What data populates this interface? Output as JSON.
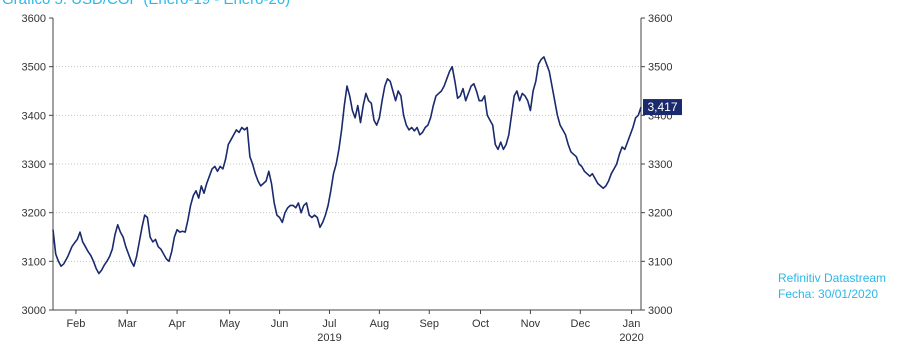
{
  "title": "Gráfico 5. USD/COP (Enero-19 - Enero-20)",
  "source": {
    "line1": "Refinitiv Datastream",
    "line2": "Fecha: 30/01/2020"
  },
  "chart_data": {
    "type": "line",
    "series": [
      {
        "color": "#1a2a6c",
        "last_value_label": "3,417",
        "last_value": 3417,
        "points": [
          [
            0,
            3165
          ],
          [
            2,
            3115
          ],
          [
            4,
            3100
          ],
          [
            6,
            3090
          ],
          [
            8,
            3095
          ],
          [
            11,
            3110
          ],
          [
            14,
            3130
          ],
          [
            16,
            3138
          ],
          [
            18,
            3145
          ],
          [
            20,
            3160
          ],
          [
            22,
            3140
          ],
          [
            24,
            3130
          ],
          [
            26,
            3120
          ],
          [
            28,
            3112
          ],
          [
            30,
            3100
          ],
          [
            32,
            3085
          ],
          [
            34,
            3075
          ],
          [
            36,
            3082
          ],
          [
            38,
            3092
          ],
          [
            40,
            3100
          ],
          [
            42,
            3110
          ],
          [
            44,
            3125
          ],
          [
            46,
            3155
          ],
          [
            48,
            3175
          ],
          [
            50,
            3160
          ],
          [
            52,
            3150
          ],
          [
            54,
            3130
          ],
          [
            56,
            3115
          ],
          [
            58,
            3100
          ],
          [
            60,
            3090
          ],
          [
            62,
            3110
          ],
          [
            64,
            3140
          ],
          [
            66,
            3170
          ],
          [
            68,
            3195
          ],
          [
            70,
            3190
          ],
          [
            72,
            3150
          ],
          [
            74,
            3140
          ],
          [
            76,
            3145
          ],
          [
            78,
            3130
          ],
          [
            80,
            3125
          ],
          [
            82,
            3115
          ],
          [
            84,
            3105
          ],
          [
            86,
            3100
          ],
          [
            88,
            3120
          ],
          [
            90,
            3150
          ],
          [
            92,
            3165
          ],
          [
            94,
            3160
          ],
          [
            96,
            3162
          ],
          [
            98,
            3160
          ],
          [
            100,
            3185
          ],
          [
            102,
            3215
          ],
          [
            104,
            3235
          ],
          [
            106,
            3245
          ],
          [
            108,
            3230
          ],
          [
            110,
            3255
          ],
          [
            112,
            3240
          ],
          [
            114,
            3260
          ],
          [
            116,
            3275
          ],
          [
            118,
            3290
          ],
          [
            120,
            3295
          ],
          [
            122,
            3285
          ],
          [
            124,
            3295
          ],
          [
            126,
            3290
          ],
          [
            128,
            3310
          ],
          [
            130,
            3340
          ],
          [
            132,
            3350
          ],
          [
            134,
            3360
          ],
          [
            136,
            3370
          ],
          [
            138,
            3365
          ],
          [
            140,
            3375
          ],
          [
            142,
            3370
          ],
          [
            144,
            3375
          ],
          [
            146,
            3315
          ],
          [
            148,
            3300
          ],
          [
            150,
            3280
          ],
          [
            152,
            3265
          ],
          [
            154,
            3255
          ],
          [
            156,
            3260
          ],
          [
            158,
            3265
          ],
          [
            160,
            3285
          ],
          [
            162,
            3260
          ],
          [
            164,
            3220
          ],
          [
            166,
            3195
          ],
          [
            168,
            3190
          ],
          [
            170,
            3180
          ],
          [
            172,
            3200
          ],
          [
            174,
            3210
          ],
          [
            176,
            3215
          ],
          [
            178,
            3215
          ],
          [
            180,
            3210
          ],
          [
            182,
            3220
          ],
          [
            184,
            3200
          ],
          [
            186,
            3215
          ],
          [
            188,
            3220
          ],
          [
            190,
            3195
          ],
          [
            192,
            3190
          ],
          [
            194,
            3195
          ],
          [
            196,
            3190
          ],
          [
            198,
            3170
          ],
          [
            200,
            3180
          ],
          [
            202,
            3195
          ],
          [
            204,
            3215
          ],
          [
            206,
            3245
          ],
          [
            208,
            3280
          ],
          [
            210,
            3300
          ],
          [
            212,
            3330
          ],
          [
            214,
            3370
          ],
          [
            216,
            3420
          ],
          [
            218,
            3460
          ],
          [
            220,
            3440
          ],
          [
            222,
            3410
          ],
          [
            224,
            3395
          ],
          [
            226,
            3420
          ],
          [
            228,
            3385
          ],
          [
            230,
            3420
          ],
          [
            232,
            3445
          ],
          [
            234,
            3430
          ],
          [
            236,
            3425
          ],
          [
            238,
            3390
          ],
          [
            240,
            3380
          ],
          [
            242,
            3395
          ],
          [
            244,
            3430
          ],
          [
            246,
            3460
          ],
          [
            248,
            3475
          ],
          [
            250,
            3470
          ],
          [
            252,
            3450
          ],
          [
            254,
            3430
          ],
          [
            256,
            3450
          ],
          [
            258,
            3440
          ],
          [
            260,
            3400
          ],
          [
            262,
            3380
          ],
          [
            264,
            3370
          ],
          [
            266,
            3375
          ],
          [
            268,
            3368
          ],
          [
            270,
            3375
          ],
          [
            272,
            3360
          ],
          [
            274,
            3365
          ],
          [
            276,
            3375
          ],
          [
            278,
            3380
          ],
          [
            280,
            3395
          ],
          [
            282,
            3420
          ],
          [
            284,
            3440
          ],
          [
            286,
            3445
          ],
          [
            288,
            3450
          ],
          [
            290,
            3460
          ],
          [
            292,
            3475
          ],
          [
            294,
            3490
          ],
          [
            296,
            3500
          ],
          [
            298,
            3470
          ],
          [
            300,
            3435
          ],
          [
            302,
            3440
          ],
          [
            304,
            3455
          ],
          [
            306,
            3430
          ],
          [
            308,
            3445
          ],
          [
            310,
            3460
          ],
          [
            312,
            3465
          ],
          [
            314,
            3450
          ],
          [
            316,
            3430
          ],
          [
            318,
            3430
          ],
          [
            320,
            3440
          ],
          [
            322,
            3400
          ],
          [
            324,
            3390
          ],
          [
            326,
            3380
          ],
          [
            328,
            3340
          ],
          [
            330,
            3330
          ],
          [
            332,
            3345
          ],
          [
            334,
            3330
          ],
          [
            336,
            3340
          ],
          [
            338,
            3360
          ],
          [
            340,
            3400
          ],
          [
            342,
            3440
          ],
          [
            344,
            3450
          ],
          [
            346,
            3430
          ],
          [
            348,
            3445
          ],
          [
            350,
            3440
          ],
          [
            352,
            3430
          ],
          [
            354,
            3410
          ],
          [
            356,
            3450
          ],
          [
            358,
            3470
          ],
          [
            360,
            3505
          ],
          [
            362,
            3515
          ],
          [
            364,
            3520
          ],
          [
            366,
            3505
          ],
          [
            368,
            3490
          ],
          [
            370,
            3460
          ],
          [
            372,
            3430
          ],
          [
            374,
            3400
          ],
          [
            376,
            3380
          ],
          [
            378,
            3370
          ],
          [
            380,
            3360
          ],
          [
            382,
            3340
          ],
          [
            384,
            3325
          ],
          [
            386,
            3320
          ],
          [
            388,
            3315
          ],
          [
            390,
            3300
          ],
          [
            392,
            3295
          ],
          [
            394,
            3285
          ],
          [
            396,
            3280
          ],
          [
            398,
            3275
          ],
          [
            400,
            3280
          ],
          [
            402,
            3270
          ],
          [
            404,
            3260
          ],
          [
            406,
            3255
          ],
          [
            408,
            3250
          ],
          [
            410,
            3255
          ],
          [
            412,
            3265
          ],
          [
            414,
            3280
          ],
          [
            416,
            3290
          ],
          [
            418,
            3300
          ],
          [
            420,
            3320
          ],
          [
            422,
            3335
          ],
          [
            424,
            3330
          ],
          [
            426,
            3345
          ],
          [
            428,
            3360
          ],
          [
            430,
            3375
          ],
          [
            432,
            3395
          ],
          [
            434,
            3400
          ],
          [
            436,
            3417
          ]
        ]
      }
    ],
    "x_range": [
      0,
      436
    ],
    "ylim": [
      3000,
      3600
    ],
    "y_ticks": [
      3000,
      3100,
      3200,
      3300,
      3400,
      3500,
      3600
    ],
    "y_tick_labels": [
      "3000",
      "3100",
      "3200",
      "3300",
      "3400",
      "3500",
      "3600"
    ],
    "x_months": [
      {
        "label": "Feb",
        "pos": 17
      },
      {
        "label": "Mar",
        "pos": 55
      },
      {
        "label": "Apr",
        "pos": 92
      },
      {
        "label": "May",
        "pos": 131
      },
      {
        "label": "Jun",
        "pos": 168
      },
      {
        "label": "Jul",
        "pos": 205
      },
      {
        "label": "Aug",
        "pos": 242
      },
      {
        "label": "Sep",
        "pos": 279
      },
      {
        "label": "Oct",
        "pos": 317
      },
      {
        "label": "Nov",
        "pos": 354
      },
      {
        "label": "Dec",
        "pos": 391
      },
      {
        "label": "Jan",
        "pos": 429
      }
    ],
    "x_years": [
      {
        "label": "2019",
        "pos": 205
      },
      {
        "label": "2020",
        "pos": 429
      }
    ],
    "grid": true,
    "dual_y_axis": true
  }
}
